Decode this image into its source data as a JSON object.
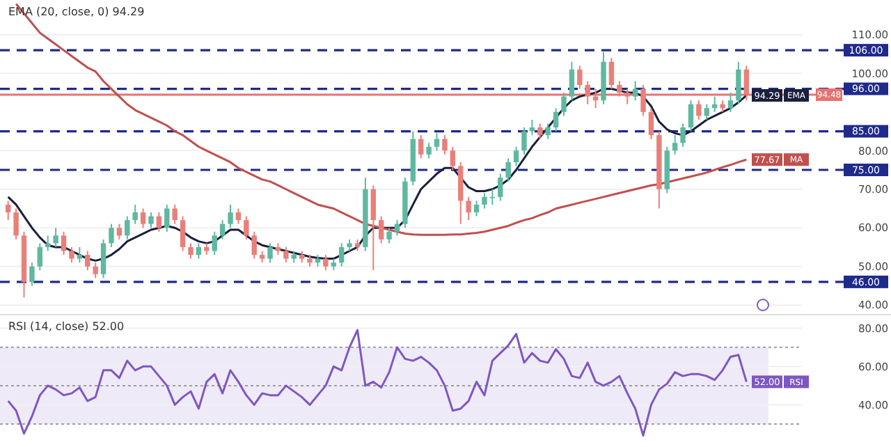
{
  "chart_data": [
    {
      "type": "candlestick",
      "title": "EMA (20, close, 0) 94.29",
      "categories": [
        null,
        null,
        null,
        null,
        null,
        null,
        null,
        null,
        null,
        null,
        null,
        null,
        null,
        null,
        null,
        null,
        null,
        null,
        null,
        null,
        null,
        null,
        null,
        null,
        null,
        null,
        null,
        null,
        null,
        null,
        null,
        null,
        null,
        null,
        null,
        null,
        null,
        null,
        null,
        null,
        null,
        null,
        null,
        null,
        null,
        null,
        null,
        null,
        null,
        null,
        null,
        null,
        null,
        null,
        null,
        null,
        null,
        null,
        null,
        null,
        null,
        null,
        null,
        null,
        null,
        null,
        null,
        null,
        null,
        null,
        null,
        null,
        null,
        null,
        null,
        null,
        null,
        null,
        null,
        null,
        null,
        null,
        null,
        null,
        null,
        null,
        null,
        null,
        null,
        null,
        null,
        null,
        null,
        null
      ],
      "ohlc": [
        [
          66,
          67,
          62,
          64
        ],
        [
          64,
          65,
          57,
          58
        ],
        [
          58,
          59,
          42,
          46
        ],
        [
          46,
          51,
          45,
          50
        ],
        [
          50,
          56,
          49,
          55
        ],
        [
          55,
          58,
          54,
          56
        ],
        [
          56,
          60,
          55,
          58
        ],
        [
          58,
          59,
          53,
          54
        ],
        [
          54,
          55,
          51,
          52
        ],
        [
          52,
          55,
          51,
          53
        ],
        [
          53,
          54,
          49,
          50
        ],
        [
          50,
          51,
          47,
          48
        ],
        [
          48,
          57,
          47,
          56
        ],
        [
          56,
          61,
          55,
          60
        ],
        [
          60,
          61,
          57,
          58
        ],
        [
          58,
          63,
          57,
          62
        ],
        [
          62,
          66,
          61,
          64
        ],
        [
          64,
          65,
          60,
          61
        ],
        [
          61,
          64,
          60,
          63
        ],
        [
          63,
          64,
          59,
          60
        ],
        [
          60,
          66,
          59,
          65
        ],
        [
          65,
          66,
          61,
          62
        ],
        [
          62,
          63,
          54,
          55
        ],
        [
          55,
          56,
          52,
          53
        ],
        [
          53,
          56,
          52,
          55
        ],
        [
          55,
          56,
          53,
          54
        ],
        [
          54,
          59,
          53,
          58
        ],
        [
          58,
          62,
          57,
          61
        ],
        [
          61,
          66,
          60,
          64
        ],
        [
          64,
          65,
          61,
          62
        ],
        [
          62,
          63,
          57,
          58
        ],
        [
          58,
          59,
          52,
          53
        ],
        [
          53,
          54,
          51,
          52
        ],
        [
          52,
          56,
          51,
          55
        ],
        [
          55,
          56,
          53,
          54
        ],
        [
          54,
          55,
          51,
          52
        ],
        [
          52,
          54,
          51,
          53
        ],
        [
          53,
          54,
          51,
          52
        ],
        [
          52,
          53,
          50,
          51
        ],
        [
          51,
          53,
          50,
          52
        ],
        [
          52,
          53,
          49,
          50
        ],
        [
          50,
          52,
          49,
          51
        ],
        [
          51,
          56,
          50,
          55
        ],
        [
          55,
          57,
          54,
          56
        ],
        [
          56,
          57,
          54,
          55
        ],
        [
          55,
          73,
          54,
          70
        ],
        [
          70,
          71,
          49,
          62
        ],
        [
          62,
          63,
          56,
          57
        ],
        [
          57,
          60,
          56,
          59
        ],
        [
          59,
          62,
          58,
          61
        ],
        [
          61,
          73,
          60,
          72
        ],
        [
          72,
          85,
          71,
          83
        ],
        [
          83,
          84,
          78,
          79
        ],
        [
          79,
          82,
          78,
          81
        ],
        [
          81,
          84.5,
          80,
          83
        ],
        [
          83,
          84,
          79,
          80
        ],
        [
          80,
          81,
          75,
          76
        ],
        [
          76,
          77,
          61,
          67
        ],
        [
          67,
          68,
          62,
          64
        ],
        [
          64,
          67,
          63,
          66
        ],
        [
          66,
          69,
          65,
          68
        ],
        [
          68,
          70,
          66,
          68
        ],
        [
          68,
          74,
          67,
          73
        ],
        [
          73,
          78,
          72,
          77
        ],
        [
          77,
          81,
          76,
          80
        ],
        [
          80,
          86,
          79,
          85
        ],
        [
          85,
          88,
          84,
          86
        ],
        [
          86,
          87,
          83,
          84
        ],
        [
          84,
          87,
          83,
          86
        ],
        [
          86,
          91,
          85,
          90
        ],
        [
          90,
          95,
          89,
          94
        ],
        [
          94,
          103,
          93,
          101
        ],
        [
          101,
          102,
          96,
          97
        ],
        [
          97,
          98,
          92,
          94
        ],
        [
          94,
          96,
          91,
          93
        ],
        [
          93,
          105.5,
          92,
          103
        ],
        [
          103,
          104,
          96,
          97
        ],
        [
          97,
          98,
          94,
          95
        ],
        [
          95,
          96,
          92,
          94
        ],
        [
          94,
          98,
          93,
          96
        ],
        [
          96,
          97,
          89,
          90
        ],
        [
          90,
          91,
          83,
          84
        ],
        [
          84,
          85,
          65,
          70
        ],
        [
          70,
          81,
          69,
          80
        ],
        [
          80,
          84,
          79,
          82
        ],
        [
          82,
          87,
          81,
          86
        ],
        [
          86,
          93,
          85,
          92
        ],
        [
          92,
          93,
          88,
          89
        ],
        [
          89,
          92,
          88,
          91
        ],
        [
          91,
          94,
          90,
          92
        ],
        [
          92,
          93,
          90,
          91
        ],
        [
          91,
          95,
          90,
          93
        ],
        [
          93,
          103,
          92,
          101
        ],
        [
          101,
          102,
          93,
          94.48
        ]
      ],
      "series": [
        {
          "type": "line",
          "name": "EMA",
          "color": "#1a1f3c",
          "values": [
            68,
            66,
            63,
            60,
            57.5,
            55.5,
            55,
            55,
            54,
            53,
            52,
            51.5,
            52,
            53,
            54.5,
            56.5,
            57.5,
            58.5,
            59.5,
            60,
            60.5,
            60,
            59,
            57.5,
            56.5,
            56,
            56.5,
            58,
            59.5,
            59.5,
            58,
            56.5,
            55.5,
            55,
            54.5,
            54,
            53.5,
            53,
            52.5,
            52.2,
            52,
            52,
            53,
            54,
            55,
            58,
            60,
            60,
            60,
            60,
            62,
            66,
            70,
            72,
            74,
            75.5,
            75.5,
            73,
            70.5,
            69.5,
            69.5,
            70,
            71,
            72.5,
            75,
            78,
            81,
            83.5,
            86,
            88.5,
            91,
            93,
            94,
            94.5,
            95,
            96,
            96,
            95.5,
            95,
            95,
            94,
            91.5,
            87.5,
            85.5,
            84.5,
            84,
            85,
            86.5,
            88,
            89,
            90,
            91,
            92.5,
            94.29
          ],
          "value_labels": [
            null,
            null,
            null,
            null,
            null,
            null,
            null,
            null,
            null,
            null,
            null,
            null,
            null,
            null,
            null,
            null,
            null,
            null,
            null,
            null,
            null,
            null,
            null,
            null,
            null,
            null,
            null,
            null,
            null,
            null,
            null,
            null,
            null,
            null,
            null,
            null,
            null,
            null,
            null,
            null,
            null,
            null,
            null,
            null,
            null,
            null,
            null,
            null,
            null,
            null,
            null,
            null,
            null,
            null,
            null,
            null,
            null,
            null,
            null,
            null,
            null,
            null,
            null,
            null,
            null,
            null,
            null,
            null,
            null,
            null,
            null,
            null,
            null,
            null,
            null,
            null,
            null,
            null,
            null,
            null,
            null,
            null,
            null,
            null,
            null,
            null,
            null,
            null,
            null,
            null,
            null,
            null,
            null,
            "94.29"
          ]
        },
        {
          "type": "line",
          "name": "MA",
          "color": "#c0504d",
          "values": [
            null,
            118,
            115.5,
            113,
            110.5,
            109,
            107.5,
            106,
            104.5,
            103,
            101.5,
            100.5,
            98,
            96,
            94,
            92,
            90.5,
            89.5,
            88.5,
            87.5,
            86.5,
            85,
            84,
            82.5,
            81,
            80,
            79,
            78,
            77,
            75.5,
            74.5,
            73.5,
            72.5,
            72,
            71,
            70,
            69,
            68,
            67,
            66,
            65.5,
            65,
            64,
            63,
            62,
            61,
            60.5,
            60,
            59.5,
            59,
            58.5,
            58.3,
            58.2,
            58.2,
            58.2,
            58.2,
            58.3,
            58.3,
            58.5,
            58.7,
            59,
            59.5,
            60,
            60.5,
            61.3,
            62,
            62.5,
            63.3,
            64,
            65,
            65.5,
            66,
            66.5,
            67,
            67.5,
            68,
            68.5,
            69,
            69.5,
            70,
            70.5,
            71,
            71.3,
            71.8,
            72.3,
            72.8,
            73.3,
            73.8,
            74.3,
            75,
            75.7,
            76.3,
            77,
            77.67
          ],
          "value_labels": [
            null,
            null,
            null,
            null,
            null,
            null,
            null,
            null,
            null,
            null,
            null,
            null,
            null,
            null,
            null,
            null,
            null,
            null,
            null,
            null,
            null,
            null,
            null,
            null,
            null,
            null,
            null,
            null,
            null,
            null,
            null,
            null,
            null,
            null,
            null,
            null,
            null,
            null,
            null,
            null,
            null,
            null,
            null,
            null,
            null,
            null,
            null,
            null,
            null,
            null,
            null,
            null,
            null,
            null,
            null,
            null,
            null,
            null,
            null,
            null,
            null,
            null,
            null,
            null,
            null,
            null,
            null,
            null,
            null,
            null,
            null,
            null,
            null,
            null,
            null,
            null,
            null,
            null,
            null,
            null,
            null,
            null,
            null,
            null,
            null,
            null,
            null,
            null,
            null,
            null,
            null,
            null,
            null,
            "77.67"
          ]
        }
      ],
      "ylim": [
        37.5,
        119
      ],
      "yticks": [
        {
          "value": 40,
          "label": "40.00"
        },
        {
          "value": 50,
          "label": "50.00"
        },
        {
          "value": 60,
          "label": "60.00"
        },
        {
          "value": 70,
          "label": "70.00"
        },
        {
          "value": 80,
          "label": "80.00"
        },
        {
          "value": 100,
          "label": "100.00"
        },
        {
          "value": 110,
          "label": "110.00"
        }
      ],
      "ref_lines": [
        {
          "axis": "y",
          "value": 106,
          "label": "106.00",
          "color": "#1f2a8a",
          "line_style": "dashed"
        },
        {
          "axis": "y",
          "value": 96,
          "label": "96.00",
          "color": "#1f2a8a",
          "line_style": "dashed"
        },
        {
          "axis": "y",
          "value": 94.48,
          "label": "94.48",
          "color": "#e57373",
          "line_style": "solid"
        },
        {
          "axis": "y",
          "value": 85,
          "label": "85.00",
          "color": "#1f2a8a",
          "line_style": "dashed"
        },
        {
          "axis": "y",
          "value": 75,
          "label": "75.00",
          "color": "#1f2a8a",
          "line_style": "dashed"
        },
        {
          "axis": "y",
          "value": 46,
          "label": "46.00",
          "color": "#1f2a8a",
          "line_style": "dashed"
        }
      ],
      "grid": "y",
      "tick_labels": "y",
      "legend": "right"
    },
    {
      "type": "line",
      "title": "RSI (14, close) 52.00",
      "categories": [
        null,
        null,
        null,
        null,
        null,
        null,
        null,
        null,
        null,
        null,
        null,
        null,
        null,
        null,
        null,
        null,
        null,
        null,
        null,
        null,
        null,
        null,
        null,
        null,
        null,
        null,
        null,
        null,
        null,
        null,
        null,
        null,
        null,
        null,
        null,
        null,
        null,
        null,
        null,
        null,
        null,
        null,
        null,
        null,
        null,
        null,
        null,
        null,
        null,
        null,
        null,
        null,
        null,
        null,
        null,
        null,
        null,
        null,
        null,
        null,
        null,
        null,
        null,
        null,
        null,
        null,
        null,
        null,
        null,
        null,
        null,
        null,
        null,
        null,
        null,
        null,
        null,
        null,
        null,
        null,
        null,
        null,
        null,
        null,
        null,
        null,
        null,
        null,
        null,
        null,
        null,
        null,
        null,
        null
      ],
      "series": [
        {
          "name": "RSI",
          "color": "#7e57c2",
          "values": [
            42,
            37,
            25,
            34,
            45,
            50,
            48,
            45,
            46,
            49,
            42,
            44,
            58,
            58,
            54,
            63,
            58,
            60,
            60,
            55,
            50,
            40,
            44,
            47,
            38,
            52,
            56,
            46,
            58,
            52,
            45,
            40,
            46,
            45,
            45,
            50,
            47,
            44,
            40,
            45,
            50,
            60,
            58,
            70,
            79,
            50,
            52,
            49,
            57,
            70,
            64,
            63,
            65,
            62,
            58,
            50,
            37,
            38,
            42,
            52,
            45,
            63,
            67,
            71,
            77,
            62,
            67,
            63,
            62,
            69,
            64,
            55,
            54,
            62,
            52,
            50,
            52,
            55,
            46,
            38,
            24,
            40,
            48,
            51,
            57,
            55,
            56,
            56,
            55,
            53,
            58,
            65,
            66,
            52
          ],
          "value_labels": [
            null,
            null,
            null,
            null,
            null,
            null,
            null,
            null,
            null,
            null,
            null,
            null,
            null,
            null,
            null,
            null,
            null,
            null,
            null,
            null,
            null,
            null,
            null,
            null,
            null,
            null,
            null,
            null,
            null,
            null,
            null,
            null,
            null,
            null,
            null,
            null,
            null,
            null,
            null,
            null,
            null,
            null,
            null,
            null,
            null,
            null,
            null,
            null,
            null,
            null,
            null,
            null,
            null,
            null,
            null,
            null,
            null,
            null,
            null,
            null,
            null,
            null,
            null,
            null,
            null,
            null,
            null,
            null,
            null,
            null,
            null,
            null,
            null,
            null,
            null,
            null,
            null,
            null,
            null,
            null,
            null,
            null,
            null,
            null,
            null,
            null,
            null,
            null,
            null,
            null,
            null,
            null,
            null,
            "52.00"
          ]
        }
      ],
      "ylim": [
        18,
        87
      ],
      "yticks": [
        {
          "value": 40,
          "label": "40.00"
        },
        {
          "value": 60,
          "label": "60.00"
        },
        {
          "value": 80,
          "label": "80.00"
        }
      ],
      "bands": [
        {
          "axis": "y",
          "from": 30,
          "to": 70,
          "color": "#efeaf8"
        }
      ],
      "ref_lines": [
        {
          "axis": "y",
          "value": 70,
          "color": "#9e9e9e",
          "line_style": "dotted"
        },
        {
          "axis": "y",
          "value": 50,
          "color": "#9e9e9e",
          "line_style": "dotted"
        },
        {
          "axis": "y",
          "value": 30,
          "color": "#9e9e9e",
          "line_style": "dotted"
        }
      ],
      "grid": "y",
      "tick_labels": "y",
      "legend": "right"
    }
  ]
}
